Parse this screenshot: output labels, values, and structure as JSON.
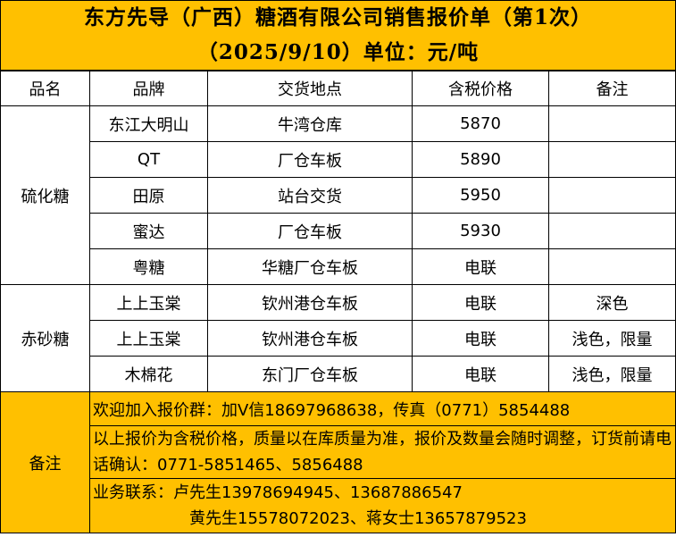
{
  "title": {
    "line1": "东方先导（广西）糖酒有限公司销售报价单（第1次）",
    "line2": "（2025/9/10）单位：元/吨"
  },
  "headers": [
    "品名",
    "品牌",
    "交货地点",
    "含税价格",
    "备注"
  ],
  "groups": [
    {
      "name": "硫化糖",
      "rows": [
        {
          "brand": "东江大明山",
          "location": "牛湾仓库",
          "price": "5870",
          "note": ""
        },
        {
          "brand": "QT",
          "location": "厂仓车板",
          "price": "5890",
          "note": ""
        },
        {
          "brand": "田原",
          "location": "站台交货",
          "price": "5950",
          "note": ""
        },
        {
          "brand": "蜜达",
          "location": "厂仓车板",
          "price": "5930",
          "note": ""
        },
        {
          "brand": "粤糖",
          "location": "华糖厂仓车板",
          "price": "电联",
          "note": ""
        }
      ]
    },
    {
      "name": "赤砂糖",
      "rows": [
        {
          "brand": "上上玉棠",
          "location": "钦州港仓车板",
          "price": "电联",
          "note": "深色"
        },
        {
          "brand": "上上玉棠",
          "location": "钦州港仓车板",
          "price": "电联",
          "note": "浅色，限量"
        },
        {
          "brand": "木棉花",
          "location": "东门厂仓车板",
          "price": "电联",
          "note": "浅色，限量"
        }
      ]
    }
  ],
  "footer": {
    "label": "备注",
    "line1": "欢迎加入报价群：加V信18697968638，传真（0771）5854488",
    "line2": "以上报价为含税价格，质量以在库质量为准，报价及数量会随时调整，订货前请电话确认：0771-5851465、5856488",
    "line3a": "业务联系：卢先生13978694945、13687886547",
    "line3b": "黄先生15578072023、蒋女士13657879523"
  },
  "colors": {
    "highlight": "#FFC000"
  }
}
